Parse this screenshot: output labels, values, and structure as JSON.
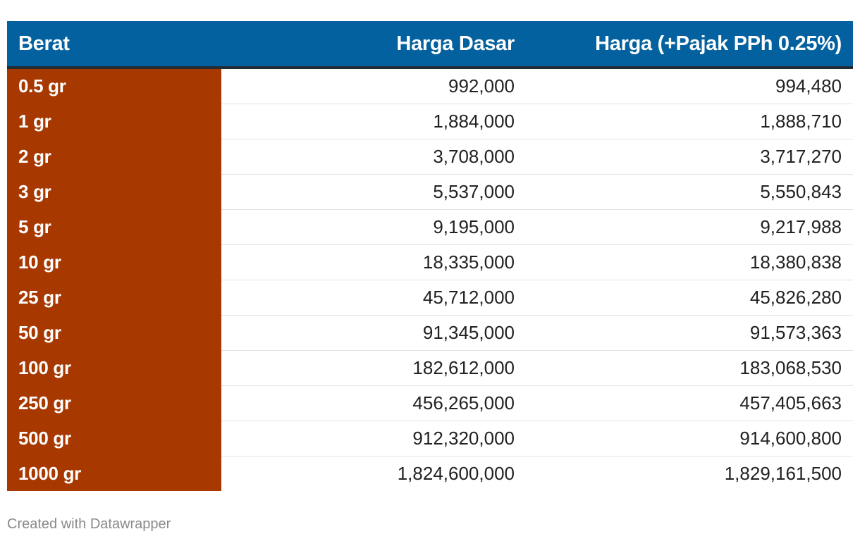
{
  "chart_data": {
    "type": "table",
    "columns": [
      "Berat",
      "Harga Dasar",
      "Harga (+Pajak PPh 0.25%)"
    ],
    "rows": [
      [
        "0.5 gr",
        "992,000",
        "994,480"
      ],
      [
        "1 gr",
        "1,884,000",
        "1,888,710"
      ],
      [
        "2 gr",
        "3,708,000",
        "3,717,270"
      ],
      [
        "3 gr",
        "5,537,000",
        "5,550,843"
      ],
      [
        "5 gr",
        "9,195,000",
        "9,217,988"
      ],
      [
        "10 gr",
        "18,335,000",
        "18,380,838"
      ],
      [
        "25 gr",
        "45,712,000",
        "45,826,280"
      ],
      [
        "50 gr",
        "91,345,000",
        "91,573,363"
      ],
      [
        "100 gr",
        "182,612,000",
        "183,068,530"
      ],
      [
        "250 gr",
        "456,265,000",
        "457,405,663"
      ],
      [
        "500 gr",
        "912,320,000",
        "914,600,800"
      ],
      [
        "1000 gr",
        "1,824,600,000",
        "1,829,161,500"
      ]
    ]
  },
  "footer": {
    "credit": "Created with Datawrapper"
  },
  "colors": {
    "header_bg": "#03619f",
    "weight_column_bg": "#a73900",
    "header_rule": "#222c33"
  }
}
